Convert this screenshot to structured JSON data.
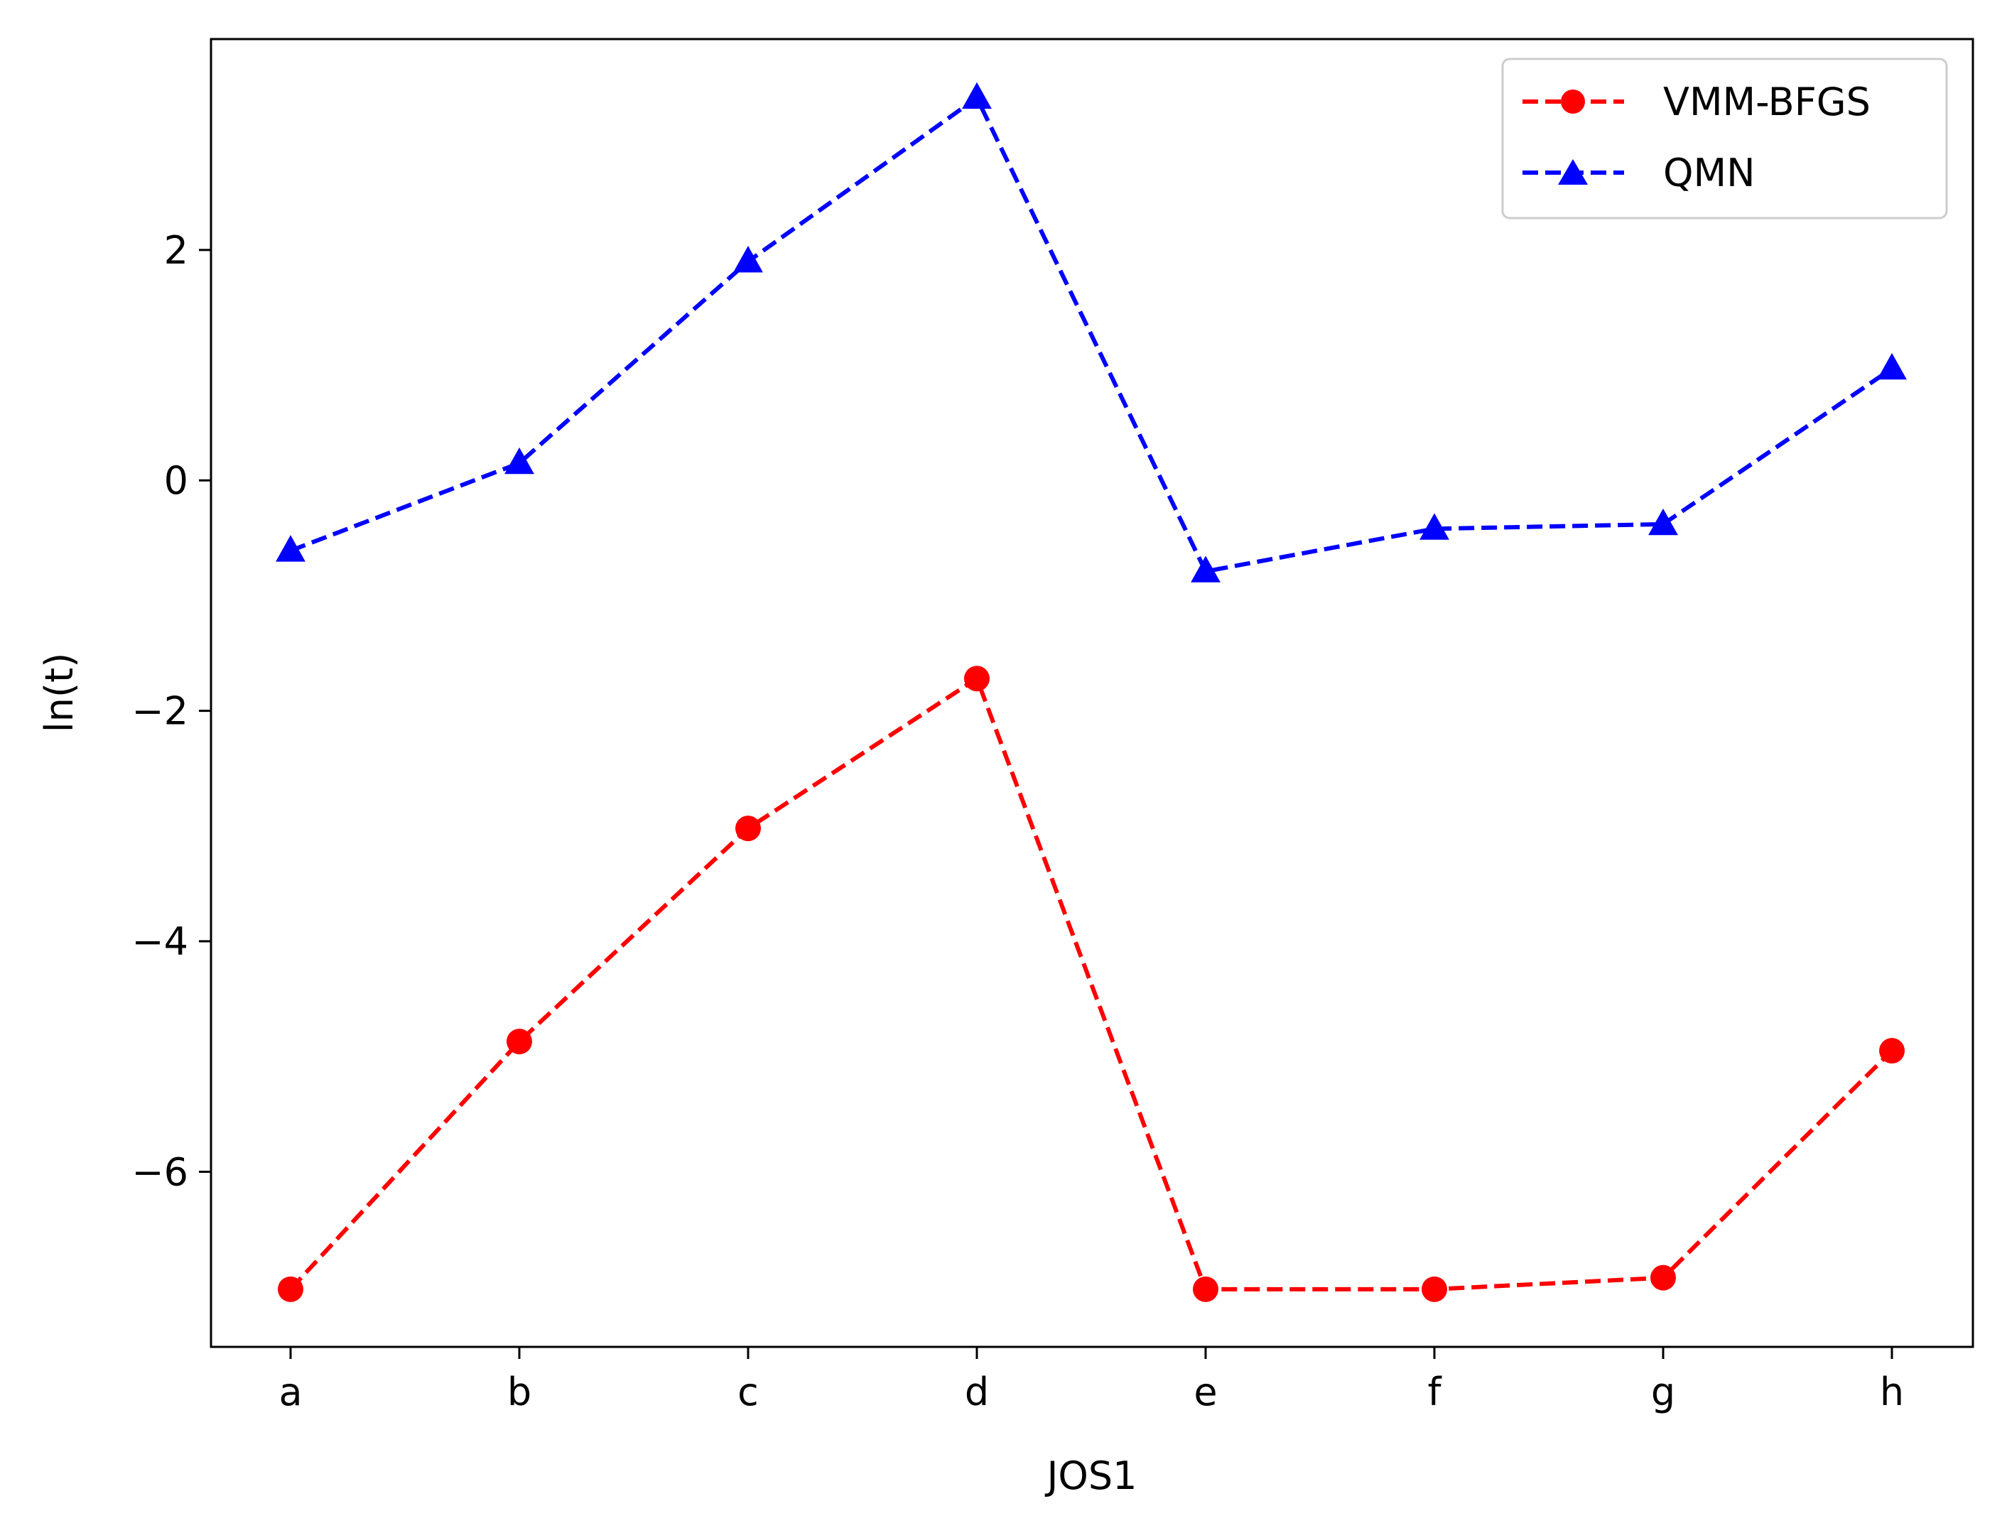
{
  "chart_data": {
    "type": "line",
    "title": "",
    "xlabel": "JOS1",
    "ylabel": "ln(t)",
    "categories": [
      "a",
      "b",
      "c",
      "d",
      "e",
      "f",
      "g",
      "h"
    ],
    "ylim": [
      -7.52,
      3.83
    ],
    "yticks": [
      -6,
      -4,
      -2,
      0,
      2
    ],
    "ytick_labels": [
      "−6",
      "−4",
      "−2",
      "0",
      "2"
    ],
    "grid": false,
    "legend": {
      "position": "top-right"
    },
    "series": [
      {
        "name": "VMM-BFGS",
        "color": "#ff0000",
        "marker": "circle",
        "line_style": "dashed",
        "values": [
          -7.02,
          -4.87,
          -3.02,
          -1.72,
          -7.02,
          -7.02,
          -6.92,
          -4.95
        ]
      },
      {
        "name": "QMN",
        "color": "#0000ff",
        "marker": "triangle",
        "line_style": "dashed",
        "values": [
          -0.61,
          0.15,
          1.9,
          3.32,
          -0.79,
          -0.42,
          -0.38,
          0.97
        ]
      }
    ]
  }
}
